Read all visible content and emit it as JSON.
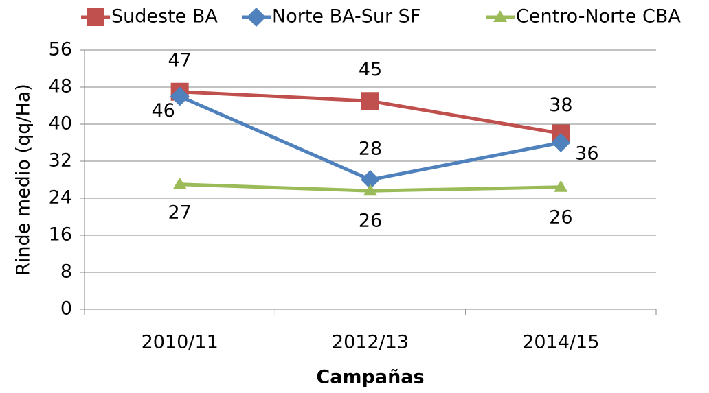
{
  "chart_data": {
    "type": "line",
    "categories": [
      "2010/11",
      "2012/13",
      "2014/15"
    ],
    "series": [
      {
        "name": "Sudeste BA",
        "color": "#c0504d",
        "marker": "square",
        "values": [
          47,
          45,
          38
        ]
      },
      {
        "name": "Norte BA-Sur SF",
        "color": "#4f81bd",
        "marker": "diamond",
        "values": [
          46,
          28,
          36
        ]
      },
      {
        "name": "Centro-Norte CBA",
        "color": "#9bbb59",
        "marker": "triangle",
        "values": [
          27,
          25.6,
          26.4
        ],
        "value_labels": [
          "27",
          "26",
          "26"
        ]
      }
    ],
    "y_label": "Rinde medio (qq/Ha)",
    "x_label": "Campañas",
    "ylim": [
      0,
      56
    ],
    "yticks": [
      0,
      8,
      16,
      24,
      32,
      40,
      48,
      56
    ],
    "grid": true,
    "legend": "top"
  }
}
